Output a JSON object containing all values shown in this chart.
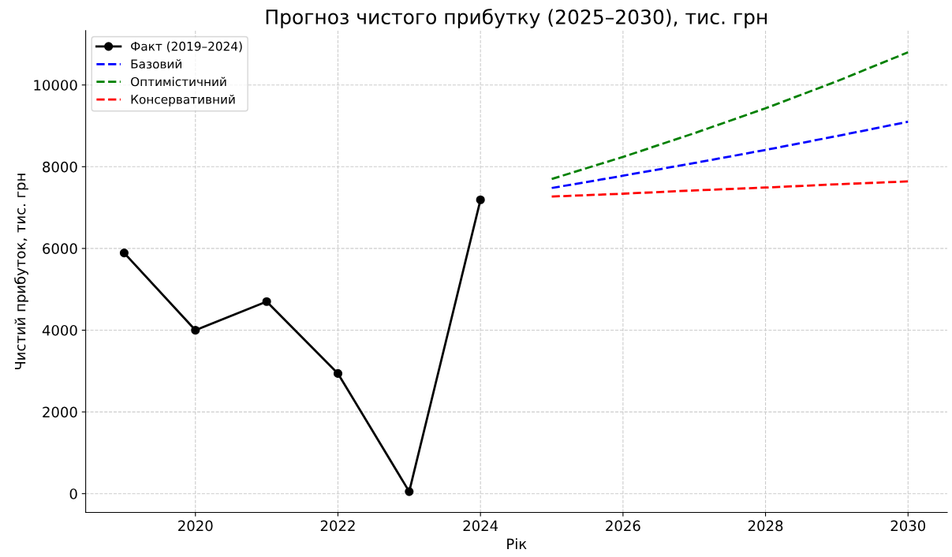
{
  "chart_data": {
    "type": "line",
    "title": "Прогноз чистого прибутку (2025–2030), тис. грн",
    "xlabel": "Рік",
    "ylabel": "Чистий прибуток, тис. грн",
    "series": [
      {
        "name": "Факт (2019–2024)",
        "color": "#000000",
        "x": [
          2019,
          2020,
          2021,
          2022,
          2023,
          2024
        ],
        "values": [
          5890,
          4000,
          4700,
          2940,
          50,
          7190
        ],
        "marker": "circle",
        "line_style": "solid"
      },
      {
        "name": "Базовий",
        "color": "#0000ff",
        "x": [
          2025,
          2026,
          2027,
          2028,
          2029,
          2030
        ],
        "values": [
          7480,
          7780,
          8090,
          8410,
          8750,
          9100
        ],
        "marker": "none",
        "line_style": "dashed"
      },
      {
        "name": "Оптимістичний",
        "color": "#008000",
        "x": [
          2025,
          2026,
          2027,
          2028,
          2029,
          2030
        ],
        "values": [
          7700,
          8240,
          8820,
          9430,
          10090,
          10800
        ],
        "marker": "none",
        "line_style": "dashed"
      },
      {
        "name": "Консервативний",
        "color": "#ff0000",
        "x": [
          2025,
          2026,
          2027,
          2028,
          2029,
          2030
        ],
        "values": [
          7270,
          7340,
          7420,
          7490,
          7570,
          7640
        ],
        "marker": "none",
        "line_style": "dashed"
      }
    ],
    "xlim": [
      2018.46,
      2030.55
    ],
    "xticks": [
      2020,
      2022,
      2024,
      2026,
      2028,
      2030
    ],
    "ylim": [
      -460,
      11330
    ],
    "yticks": [
      0,
      2000,
      4000,
      6000,
      8000,
      10000
    ],
    "grid": true,
    "legend": "top left"
  }
}
